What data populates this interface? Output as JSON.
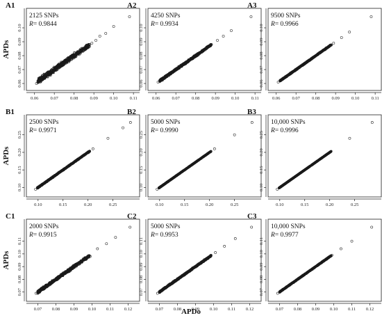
{
  "figure": {
    "ylabel": "APDs",
    "xlabel": "APDo",
    "point_color": "#1a1a1a",
    "marker": "open-circle"
  },
  "chart_data": [
    {
      "id": "A1",
      "type": "scatter",
      "snps": "2125 SNPs",
      "r_prefix": "R",
      "r_value": "= 0.9844",
      "r": 0.9844,
      "xlim": [
        0.058,
        0.111
      ],
      "ylim": [
        0.058,
        0.111
      ],
      "xticks": [
        0.06,
        0.07,
        0.08,
        0.09,
        0.1,
        0.11
      ],
      "xtick_labels": [
        "0.06",
        "0.07",
        "0.08",
        "0.09",
        "0.10",
        "0.11"
      ],
      "yticks": [
        0.06,
        0.07,
        0.08,
        0.09,
        0.1
      ],
      "ytick_labels": [
        "0.06",
        "0.07",
        "0.08",
        "0.09",
        "0.10"
      ],
      "series": [
        {
          "points": [
            [
              0.061,
              0.06
            ],
            [
              0.063,
              0.064
            ],
            [
              0.065,
              0.064
            ],
            [
              0.067,
              0.068
            ],
            [
              0.069,
              0.068
            ],
            [
              0.071,
              0.072
            ],
            [
              0.073,
              0.072
            ],
            [
              0.075,
              0.076
            ],
            [
              0.077,
              0.077
            ],
            [
              0.079,
              0.079
            ],
            [
              0.081,
              0.081
            ],
            [
              0.083,
              0.083
            ],
            [
              0.085,
              0.085
            ],
            [
              0.087,
              0.087
            ],
            [
              0.089,
              0.089
            ],
            [
              0.091,
              0.091
            ],
            [
              0.093,
              0.094
            ],
            [
              0.096,
              0.096
            ],
            [
              0.1,
              0.101
            ],
            [
              0.108,
              0.108
            ]
          ]
        }
      ]
    },
    {
      "id": "A2",
      "type": "scatter",
      "snps": "4250 SNPs",
      "r_prefix": "R",
      "r_value": "= 0.9934",
      "r": 0.9934,
      "xlim": [
        0.058,
        0.111
      ],
      "ylim": [
        0.058,
        0.111
      ],
      "xticks": [
        0.06,
        0.07,
        0.08,
        0.09,
        0.1,
        0.11
      ],
      "xtick_labels": [
        "0.06",
        "0.07",
        "0.08",
        "0.09",
        "0.10",
        "0.11"
      ],
      "yticks": [
        0.06,
        0.07,
        0.08,
        0.09,
        0.1
      ],
      "ytick_labels": [
        "0.06",
        "0.07",
        "0.08",
        "0.09",
        "0.10"
      ],
      "series": [
        {
          "points": [
            [
              0.061,
              0.061
            ],
            [
              0.064,
              0.064
            ],
            [
              0.067,
              0.067
            ],
            [
              0.07,
              0.07
            ],
            [
              0.073,
              0.073
            ],
            [
              0.076,
              0.076
            ],
            [
              0.079,
              0.079
            ],
            [
              0.082,
              0.082
            ],
            [
              0.085,
              0.085
            ],
            [
              0.088,
              0.088
            ],
            [
              0.091,
              0.091
            ],
            [
              0.094,
              0.094
            ],
            [
              0.098,
              0.098
            ],
            [
              0.108,
              0.108
            ]
          ]
        }
      ]
    },
    {
      "id": "A3",
      "type": "scatter",
      "snps": "9500 SNPs",
      "r_prefix": "R",
      "r_value": "= 0.9966",
      "r": 0.9966,
      "xlim": [
        0.058,
        0.111
      ],
      "ylim": [
        0.058,
        0.111
      ],
      "xticks": [
        0.06,
        0.07,
        0.08,
        0.09,
        0.1,
        0.11
      ],
      "xtick_labels": [
        "0.06",
        "0.07",
        "0.08",
        "0.09",
        "0.10",
        "0.11"
      ],
      "yticks": [
        0.06,
        0.07,
        0.08,
        0.09,
        0.1
      ],
      "ytick_labels": [
        "0.06",
        "0.07",
        "0.08",
        "0.09",
        "0.10"
      ],
      "series": [
        {
          "points": [
            [
              0.061,
              0.061
            ],
            [
              0.065,
              0.065
            ],
            [
              0.069,
              0.069
            ],
            [
              0.073,
              0.073
            ],
            [
              0.077,
              0.077
            ],
            [
              0.081,
              0.081
            ],
            [
              0.085,
              0.085
            ],
            [
              0.089,
              0.089
            ],
            [
              0.093,
              0.093
            ],
            [
              0.097,
              0.097
            ],
            [
              0.108,
              0.108
            ]
          ]
        }
      ]
    },
    {
      "id": "B1",
      "type": "scatter",
      "snps": "2500 SNPs",
      "r_prefix": "R",
      "r_value": "= 0.9971",
      "r": 0.9971,
      "xlim": [
        0.085,
        0.295
      ],
      "ylim": [
        0.085,
        0.295
      ],
      "xticks": [
        0.1,
        0.15,
        0.2,
        0.25
      ],
      "xtick_labels": [
        "0.10",
        "0.15",
        "0.20",
        "0.25"
      ],
      "yticks": [
        0.1,
        0.15,
        0.2,
        0.25
      ],
      "ytick_labels": [
        "0.10",
        "0.15",
        "0.20",
        "0.25"
      ],
      "series": [
        {
          "points": [
            [
              0.095,
              0.095
            ],
            [
              0.12,
              0.12
            ],
            [
              0.15,
              0.15
            ],
            [
              0.18,
              0.18
            ],
            [
              0.21,
              0.21
            ],
            [
              0.24,
              0.24
            ],
            [
              0.27,
              0.27
            ],
            [
              0.285,
              0.285
            ]
          ]
        }
      ]
    },
    {
      "id": "B2",
      "type": "scatter",
      "snps": "5000 SNPs",
      "r_prefix": "R",
      "r_value": "= 0.9990",
      "r": 0.999,
      "xlim": [
        0.085,
        0.295
      ],
      "ylim": [
        0.085,
        0.295
      ],
      "xticks": [
        0.1,
        0.15,
        0.2,
        0.25
      ],
      "xtick_labels": [
        "0.10",
        "0.15",
        "0.20",
        "0.25"
      ],
      "yticks": [
        0.1,
        0.15,
        0.2,
        0.25
      ],
      "ytick_labels": [
        "0.10",
        "0.15",
        "0.20",
        "0.25"
      ],
      "series": [
        {
          "points": [
            [
              0.095,
              0.095
            ],
            [
              0.13,
              0.13
            ],
            [
              0.17,
              0.17
            ],
            [
              0.21,
              0.21
            ],
            [
              0.25,
              0.25
            ],
            [
              0.285,
              0.285
            ]
          ]
        }
      ]
    },
    {
      "id": "B3",
      "type": "scatter",
      "snps": "10,000 SNPs",
      "r_prefix": "R",
      "r_value": "= 0.9996",
      "r": 0.9996,
      "xlim": [
        0.085,
        0.295
      ],
      "ylim": [
        0.085,
        0.295
      ],
      "xticks": [
        0.1,
        0.15,
        0.2,
        0.25
      ],
      "xtick_labels": [
        "0.10",
        "0.15",
        "0.20",
        "0.25"
      ],
      "yticks": [
        0.1,
        0.15,
        0.2,
        0.25
      ],
      "ytick_labels": [
        "0.10",
        "0.15",
        "0.20",
        "0.25"
      ],
      "series": [
        {
          "points": [
            [
              0.095,
              0.095
            ],
            [
              0.14,
              0.14
            ],
            [
              0.19,
              0.19
            ],
            [
              0.24,
              0.24
            ],
            [
              0.285,
              0.285
            ]
          ]
        }
      ]
    },
    {
      "id": "C1",
      "type": "scatter",
      "snps": "2000 SNPs",
      "r_prefix": "R",
      "r_value": "= 0.9915",
      "r": 0.9915,
      "xlim": [
        0.066,
        0.124
      ],
      "ylim": [
        0.066,
        0.124
      ],
      "xticks": [
        0.07,
        0.08,
        0.09,
        0.1,
        0.11,
        0.12
      ],
      "xtick_labels": [
        "0.07",
        "0.08",
        "0.09",
        "0.10",
        "0.11",
        "0.12"
      ],
      "yticks": [
        0.07,
        0.08,
        0.09,
        0.1,
        0.11
      ],
      "ytick_labels": [
        "0.07",
        "0.08",
        "0.09",
        "0.10",
        "0.11"
      ],
      "series": [
        {
          "points": [
            [
              0.069,
              0.069
            ],
            [
              0.072,
              0.073
            ],
            [
              0.075,
              0.074
            ],
            [
              0.078,
              0.079
            ],
            [
              0.081,
              0.08
            ],
            [
              0.084,
              0.085
            ],
            [
              0.087,
              0.086
            ],
            [
              0.09,
              0.091
            ],
            [
              0.093,
              0.092
            ],
            [
              0.096,
              0.097
            ],
            [
              0.099,
              0.098
            ],
            [
              0.103,
              0.104
            ],
            [
              0.108,
              0.108
            ],
            [
              0.113,
              0.113
            ],
            [
              0.121,
              0.121
            ]
          ]
        }
      ]
    },
    {
      "id": "C2",
      "type": "scatter",
      "snps": "5000 SNPs",
      "r_prefix": "R",
      "r_value": "= 0.9953",
      "r": 0.9953,
      "xlim": [
        0.066,
        0.124
      ],
      "ylim": [
        0.066,
        0.124
      ],
      "xticks": [
        0.07,
        0.08,
        0.09,
        0.1,
        0.11,
        0.12
      ],
      "xtick_labels": [
        "0.07",
        "0.08",
        "0.09",
        "0.10",
        "0.11",
        "0.12"
      ],
      "yticks": [
        0.07,
        0.08,
        0.09,
        0.1,
        0.11
      ],
      "ytick_labels": [
        "0.07",
        "0.08",
        "0.09",
        "0.10",
        "0.11"
      ],
      "series": [
        {
          "points": [
            [
              0.069,
              0.069
            ],
            [
              0.073,
              0.073
            ],
            [
              0.077,
              0.077
            ],
            [
              0.081,
              0.081
            ],
            [
              0.085,
              0.085
            ],
            [
              0.089,
              0.089
            ],
            [
              0.093,
              0.093
            ],
            [
              0.097,
              0.097
            ],
            [
              0.101,
              0.101
            ],
            [
              0.106,
              0.106
            ],
            [
              0.112,
              0.112
            ],
            [
              0.121,
              0.121
            ]
          ]
        }
      ]
    },
    {
      "id": "C3",
      "type": "scatter",
      "snps": "10,000 SNPs",
      "r_prefix": "R",
      "r_value": "= 0.9977",
      "r": 0.9977,
      "xlim": [
        0.066,
        0.124
      ],
      "ylim": [
        0.066,
        0.124
      ],
      "xticks": [
        0.07,
        0.08,
        0.09,
        0.1,
        0.11,
        0.12
      ],
      "xtick_labels": [
        "0.07",
        "0.08",
        "0.09",
        "0.10",
        "0.11",
        "0.12"
      ],
      "yticks": [
        0.07,
        0.08,
        0.09,
        0.1,
        0.11
      ],
      "ytick_labels": [
        "0.07",
        "0.08",
        "0.09",
        "0.10",
        "0.11"
      ],
      "series": [
        {
          "points": [
            [
              0.069,
              0.069
            ],
            [
              0.074,
              0.074
            ],
            [
              0.079,
              0.079
            ],
            [
              0.084,
              0.084
            ],
            [
              0.089,
              0.089
            ],
            [
              0.094,
              0.094
            ],
            [
              0.099,
              0.099
            ],
            [
              0.104,
              0.104
            ],
            [
              0.11,
              0.11
            ],
            [
              0.121,
              0.121
            ]
          ]
        }
      ]
    }
  ]
}
